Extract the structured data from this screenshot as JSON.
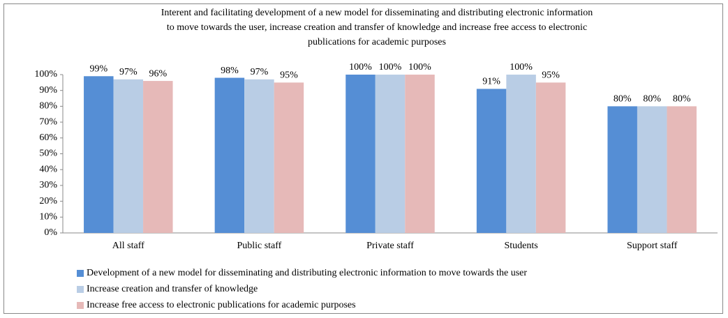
{
  "chart_data": {
    "type": "bar",
    "title": [
      "Interent and facilitating development of a new model for disseminating and distributing electronic information",
      "to move towards the user, increase creation and transfer of knowledge and increase free access to electronic",
      "publications for academic purposes"
    ],
    "categories": [
      "All staff",
      "Public staff",
      "Private staff",
      "Students",
      "Support staff"
    ],
    "series": [
      {
        "name": "Development of a new model for disseminating and distributing electronic information to move towards the user",
        "color": "#558ed5",
        "values": [
          99,
          98,
          100,
          91,
          80
        ],
        "value_labels": [
          "99%",
          "98%",
          "100%",
          "91%",
          "80%"
        ]
      },
      {
        "name": "Increase creation and transfer of knowledge",
        "color": "#b9cde5",
        "values": [
          97,
          97,
          100,
          100,
          80
        ],
        "value_labels": [
          "97%",
          "97%",
          "100%",
          "100%",
          "80%"
        ]
      },
      {
        "name": "Increase free access to electronic publications for academic purposes",
        "color": "#e6b9b8",
        "values": [
          96,
          95,
          100,
          95,
          80
        ],
        "value_labels": [
          "96%",
          "95%",
          "100%",
          "95%",
          "80%"
        ]
      }
    ],
    "ylim": [
      0,
      100
    ],
    "yticks": [
      {
        "value": 0,
        "label": "0%"
      },
      {
        "value": 10,
        "label": "10%"
      },
      {
        "value": 20,
        "label": "20%"
      },
      {
        "value": 30,
        "label": "30%"
      },
      {
        "value": 40,
        "label": "40%"
      },
      {
        "value": 50,
        "label": "50%"
      },
      {
        "value": 60,
        "label": "60%"
      },
      {
        "value": 70,
        "label": "70%"
      },
      {
        "value": 80,
        "label": "80%"
      },
      {
        "value": 90,
        "label": "90%"
      },
      {
        "value": 100,
        "label": "100%"
      }
    ],
    "grid": false,
    "legend": "bottom"
  }
}
